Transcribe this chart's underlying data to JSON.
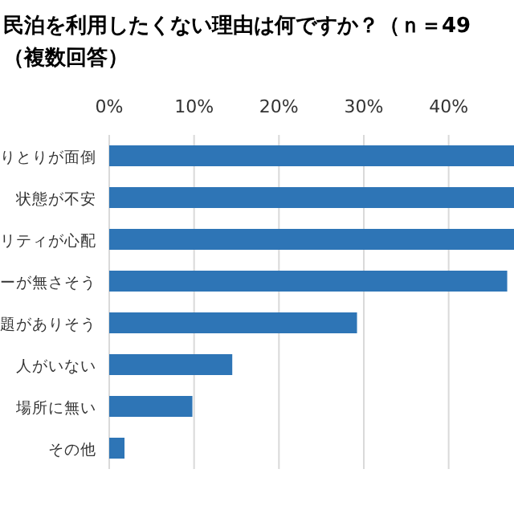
{
  "chart_data": {
    "type": "bar",
    "orientation": "horizontal",
    "title": "民泊を利用したくない理由は何ですか？（ｎ＝49",
    "subtitle": "（複数回答）",
    "categories": [
      "りとりが面倒",
      "状態が不安",
      "リティが心配",
      "ーが無さそう",
      "題がありそう",
      "人がいない",
      "場所に無い",
      "その他"
    ],
    "values": [
      47.7,
      47.7,
      47.7,
      46.9,
      29.2,
      14.5,
      9.8,
      1.8
    ],
    "color": "#2e75b6",
    "xlim": [
      0,
      47.7
    ],
    "xticks": [
      {
        "value": 0,
        "label": "0%"
      },
      {
        "value": 10,
        "label": "10%"
      },
      {
        "value": 20,
        "label": "20%"
      },
      {
        "value": 30,
        "label": "30%"
      },
      {
        "value": 40,
        "label": "40%"
      }
    ],
    "grid": "x"
  }
}
